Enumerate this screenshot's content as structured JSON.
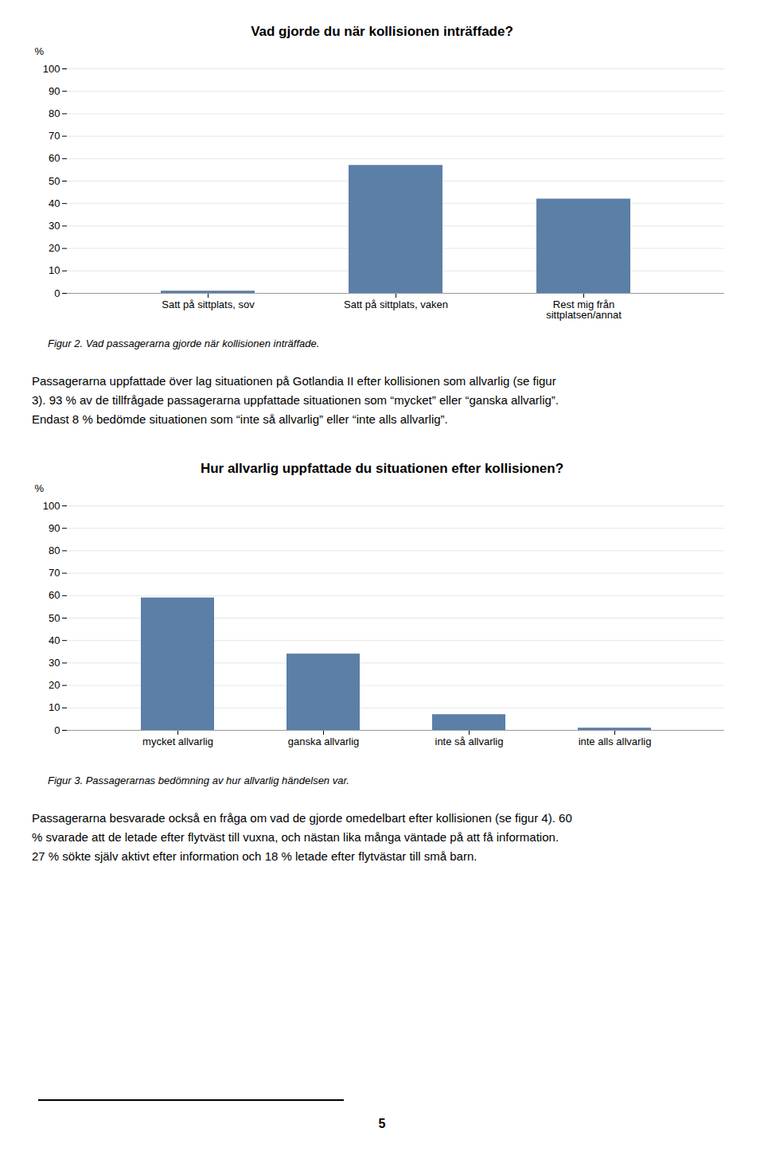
{
  "chart_data": [
    {
      "type": "bar",
      "title": "Vad gjorde du när kollisionen inträffade?",
      "ylabel": "%",
      "categories": [
        "Satt på sittplats, sov",
        "Satt på sittplats, vaken",
        "Rest mig från\nsittplatsen/annat"
      ],
      "values": [
        1,
        57,
        42
      ],
      "color": "#5b7fa6",
      "ylim": [
        0,
        100
      ],
      "yticks": [
        0,
        10,
        20,
        30,
        40,
        50,
        60,
        70,
        80,
        90,
        100
      ],
      "grid": true,
      "annotations": [
        "Figur 2. Vad passagerarna gjorde när kollisionen inträffade.",
        "Passagerarna uppfattade över lag situationen på Gotlandia II efter kollisionen som allvarlig (se figur",
        "3). 93 % av de tillfrågade passagerarna uppfattade situationen som “mycket” eller “ganska allvarlig”.",
        "Endast 8 % bedömde situationen som “inte så allvarlig” eller “inte alls allvarlig”."
      ]
    },
    {
      "type": "bar",
      "title": "Hur allvarlig uppfattade du situationen efter kollisionen?",
      "ylabel": "%",
      "categories": [
        "mycket allvarlig",
        "ganska allvarlig",
        "inte så allvarlig",
        "inte alls allvarlig"
      ],
      "values": [
        59,
        34,
        7,
        1
      ],
      "color": "#5b7fa6",
      "ylim": [
        0,
        100
      ],
      "yticks": [
        0,
        10,
        20,
        30,
        40,
        50,
        60,
        70,
        80,
        90,
        100
      ],
      "grid": true,
      "annotations": [
        "Figur 3. Passagerarnas bedömning av hur allvarlig händelsen var.",
        "Passagerarna besvarade också en fråga om vad de gjorde omedelbart efter kollisionen (se figur 4). 60",
        "% svarade att de letade efter flytväst till vuxna, och nästan lika många väntade på att få information.",
        "27 % sökte själv aktivt efter information och 18 % letade efter flytvästar till små barn."
      ]
    }
  ],
  "annotations": [
    "5"
  ]
}
